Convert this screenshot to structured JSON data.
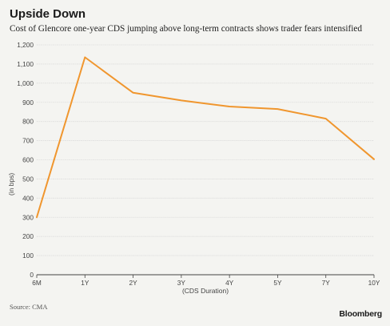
{
  "header": {
    "title": "Upside Down",
    "subtitle": "Cost of Glencore one-year CDS jumping above long-term contracts shows trader fears intensified"
  },
  "footer": {
    "source": "Source: CMA",
    "brand": "Bloomberg"
  },
  "colors": {
    "line": "#f0962e",
    "grid": "#cfcfcf",
    "axis": "#444444",
    "background": "#f4f4f1"
  },
  "chart_data": {
    "type": "line",
    "categories": [
      "6M",
      "1Y",
      "2Y",
      "3Y",
      "4Y",
      "5Y",
      "7Y",
      "10Y"
    ],
    "series": [
      {
        "values": [
          300,
          1135,
          950,
          910,
          878,
          865,
          815,
          603
        ]
      }
    ],
    "xlabel": "(CDS Duration)",
    "ylabel": "(in bps)",
    "ylim": [
      0,
      1200
    ],
    "yticks": [
      "0",
      "100",
      "200",
      "300",
      "400",
      "500",
      "600",
      "700",
      "800",
      "900",
      "1,000",
      "1,100",
      "1,200"
    ],
    "grid": true
  }
}
